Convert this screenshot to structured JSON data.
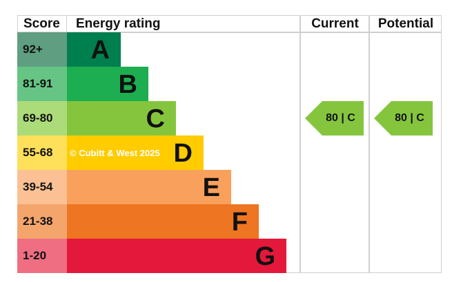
{
  "chart_data": {
    "type": "table",
    "headers": {
      "score": "Score",
      "rating": "Energy rating",
      "current": "Current",
      "potential": "Potential"
    },
    "bands": [
      {
        "score": "92+",
        "letter": "A",
        "color": "#007f4e",
        "score_color": "#5f9e80"
      },
      {
        "score": "81-91",
        "letter": "B",
        "color": "#1cae50",
        "score_color": "#66c584"
      },
      {
        "score": "69-80",
        "letter": "C",
        "color": "#85c53e",
        "score_color": "#acdb7a"
      },
      {
        "score": "55-68",
        "letter": "D",
        "color": "#ffcc00",
        "score_color": "#ffe05a"
      },
      {
        "score": "39-54",
        "letter": "E",
        "color": "#f9a05c",
        "score_color": "#fbc093"
      },
      {
        "score": "21-38",
        "letter": "F",
        "color": "#ee7522",
        "score_color": "#f3a56c"
      },
      {
        "score": "1-20",
        "letter": "G",
        "color": "#e3183a",
        "score_color": "#ef6e82"
      }
    ],
    "current": {
      "value": 80,
      "band": "C",
      "label": "80 | C",
      "color": "#85c53e"
    },
    "potential": {
      "value": 80,
      "band": "C",
      "label": "80 | C",
      "color": "#85c53e"
    },
    "watermark": "© Cubitt & West 2025"
  }
}
